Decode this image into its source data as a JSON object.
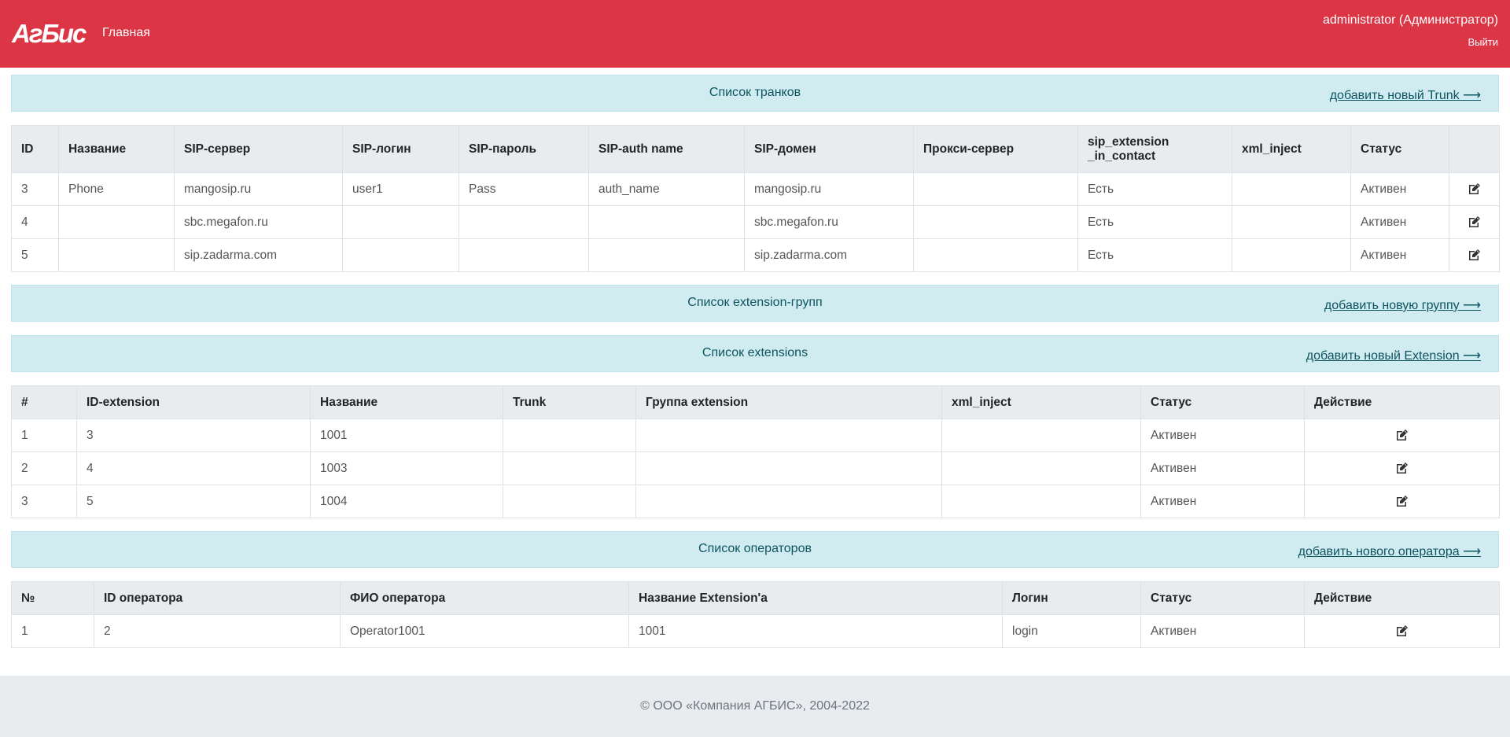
{
  "header": {
    "logo": "АгБис",
    "nav": "Главная",
    "user": "administrator (Администратор)",
    "logout": "Выйти"
  },
  "sections": [
    {
      "title": "Список транков",
      "link": "добавить новый Trunk ⟶",
      "table": {
        "columns": [
          "ID",
          "Название",
          "SIP-сервер",
          "SIP-логин",
          "SIP-пароль",
          "SIP-auth name",
          "SIP-домен",
          "Прокси-сервер",
          "sip_extension _in_contact",
          "xml_inject",
          "Статус"
        ],
        "rows": [
          [
            "3",
            "Phone",
            "mangosip.ru",
            "user1",
            "Pass",
            "auth_name",
            "mangosip.ru",
            null,
            "Есть",
            null,
            "Активен"
          ],
          [
            "4",
            null,
            "sbc.megafon.ru",
            null,
            null,
            null,
            "sbc.megafon.ru",
            null,
            "Есть",
            null,
            "Активен"
          ],
          [
            "5",
            null,
            "sip.zadarma.com",
            null,
            null,
            null,
            "sip.zadarma.com",
            null,
            "Есть",
            null,
            "Активен"
          ]
        ]
      }
    },
    {
      "title": "Список extension-групп",
      "link": "добавить новую группу ⟶"
    },
    {
      "title": "Список extensions",
      "link": "добавить новый Extension ⟶",
      "table": {
        "columns": [
          "#",
          "ID-extension",
          "Название",
          "Trunk",
          "Группа extension",
          "xml_inject",
          "Статус",
          "Действие"
        ],
        "rows": [
          [
            "1",
            "3",
            "1001",
            null,
            null,
            null,
            "Активен"
          ],
          [
            "2",
            "4",
            "1003",
            null,
            null,
            null,
            "Активен"
          ],
          [
            "3",
            "5",
            "1004",
            null,
            null,
            null,
            "Активен"
          ]
        ]
      }
    },
    {
      "title": "Список операторов",
      "link": "добавить нового оператора ⟶",
      "table": {
        "columns": [
          "№",
          "ID оператора",
          "ФИО оператора",
          "Название Extension'а",
          "Логин",
          "Статус",
          "Действие"
        ],
        "rows": [
          [
            "1",
            "2",
            "Operator1001",
            "1001",
            "login",
            "Активен"
          ]
        ]
      }
    }
  ],
  "footer": "© ООО «Компания АГБИС», 2004-2022"
}
